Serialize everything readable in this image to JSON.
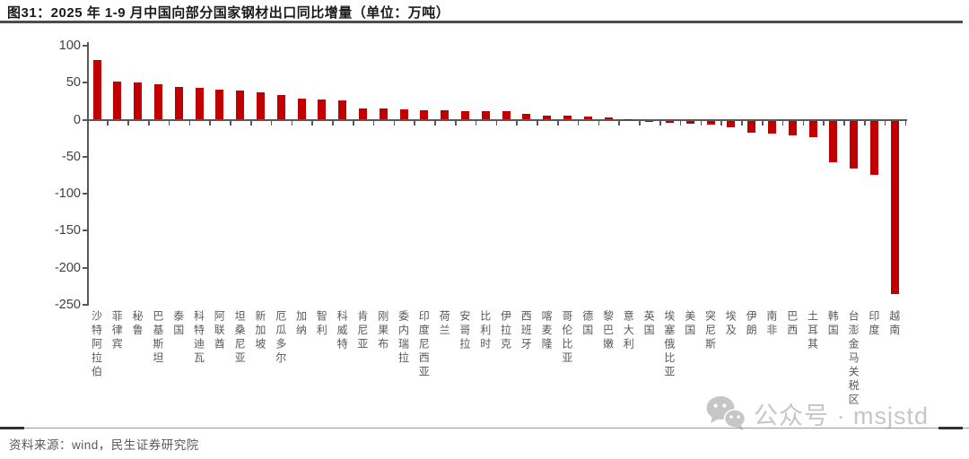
{
  "header": {
    "title": "图31：2025 年 1-9 月中国向部分国家钢材出口同比增量（单位：万吨）"
  },
  "chart_data": {
    "type": "bar",
    "title": "2025 年 1-9 月中国向部分国家钢材出口同比增量",
    "unit": "万吨",
    "bar_color": "#c00000",
    "grid": false,
    "legend_position": "none",
    "ylim": [
      -250,
      100
    ],
    "yticks": [
      100,
      50,
      0,
      -50,
      -100,
      -150,
      -200,
      -250
    ],
    "categories": [
      "沙特阿拉伯",
      "菲律宾",
      "秘鲁",
      "巴基斯坦",
      "泰国",
      "科特迪瓦",
      "阿联酋",
      "坦桑尼亚",
      "新加坡",
      "厄瓜多尔",
      "加纳",
      "智利",
      "科威特",
      "肯尼亚",
      "刚果布",
      "委内瑞拉",
      "印度尼西亚",
      "荷兰",
      "安哥拉",
      "比利时",
      "伊拉克",
      "西班牙",
      "喀麦隆",
      "哥伦比亚",
      "德国",
      "黎巴嫩",
      "意大利",
      "英国",
      "埃塞俄比亚",
      "美国",
      "突尼斯",
      "埃及",
      "伊朗",
      "南非",
      "巴西",
      "土耳其",
      "韩国",
      "台澎金马关税区",
      "印度",
      "越南"
    ],
    "values": [
      80,
      51,
      50,
      48,
      44,
      43,
      41,
      39,
      37,
      33,
      29,
      27,
      26,
      15,
      15,
      14,
      13,
      13,
      12,
      12,
      12,
      8,
      6,
      5,
      4,
      3,
      1,
      -1,
      -3,
      -4,
      -6,
      -9,
      -16,
      -17,
      -20,
      -22,
      -56,
      -65,
      -73,
      -234
    ]
  },
  "watermark": {
    "icon": "wechat-icon",
    "text": "公众号 · msjstd"
  },
  "footer": {
    "source": "资料来源：wind，民生证券研究院"
  }
}
